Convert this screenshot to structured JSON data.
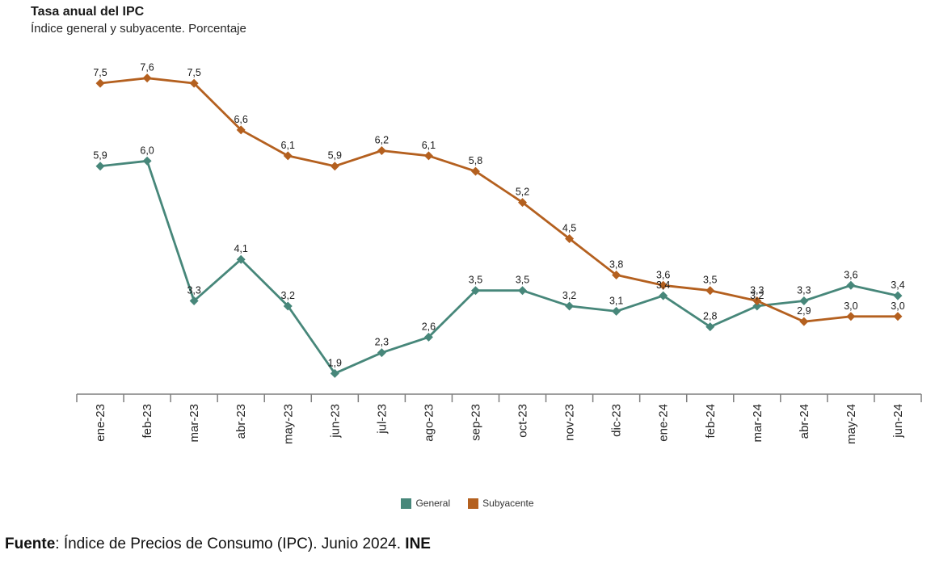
{
  "header": {
    "title": "Tasa anual del IPC",
    "subtitle": "Índice general y subyacente. Porcentaje"
  },
  "footer": {
    "source_label": "Fuente",
    "source_text": ": Índice de Precios de Consumo (IPC). Junio 2024. ",
    "source_org": "INE"
  },
  "colors": {
    "general": "#47877A",
    "subyacente": "#B4601F",
    "axis": "#7F7F7F",
    "data_label_text": "#1A1A1A"
  },
  "chart_data": {
    "type": "line",
    "title": "Tasa anual del IPC",
    "subtitle": "Índice general y subyacente. Porcentaje",
    "categories": [
      "ene-23",
      "feb-23",
      "mar-23",
      "abr-23",
      "may-23",
      "jun-23",
      "jul-23",
      "ago-23",
      "sep-23",
      "oct-23",
      "nov-23",
      "dic-23",
      "ene-24",
      "feb-24",
      "mar-24",
      "abr-24",
      "may-24",
      "jun-24"
    ],
    "series": [
      {
        "name": "General",
        "color": "#47877A",
        "values": [
          5.9,
          6.0,
          3.3,
          4.1,
          3.2,
          1.9,
          2.3,
          2.6,
          3.5,
          3.5,
          3.2,
          3.1,
          3.4,
          2.8,
          3.2,
          3.3,
          3.6,
          3.4
        ]
      },
      {
        "name": "Subyacente",
        "color": "#B4601F",
        "values": [
          7.5,
          7.6,
          7.5,
          6.6,
          6.1,
          5.9,
          6.2,
          6.1,
          5.8,
          5.2,
          4.5,
          3.8,
          3.6,
          3.5,
          3.3,
          2.9,
          3.0,
          3.0
        ]
      }
    ],
    "ylim": [
      1.5,
      8.0
    ],
    "marker": "diamond",
    "data_labels": true,
    "decimal_separator": ",",
    "grid": false,
    "legend_position": "bottom",
    "xlabel": "",
    "ylabel": ""
  }
}
